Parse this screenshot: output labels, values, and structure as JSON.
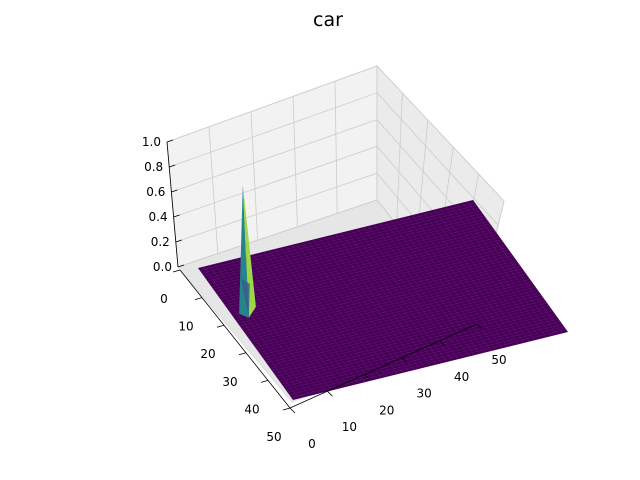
{
  "chart_data": {
    "type": "surface3d",
    "title": "car",
    "xlabel": "",
    "ylabel": "",
    "zlabel": "",
    "xlim": [
      0,
      50
    ],
    "ylim": [
      0,
      50
    ],
    "zlim": [
      0,
      1
    ],
    "x_ticks": [
      "0",
      "10",
      "20",
      "30",
      "40",
      "50"
    ],
    "y_ticks": [
      "0",
      "10",
      "20",
      "30",
      "40",
      "50"
    ],
    "z_ticks": [
      "0.0",
      "0.2",
      "0.4",
      "0.6",
      "0.8",
      "1.0"
    ],
    "grid": true,
    "colormap": "viridis",
    "peak": {
      "x": 3,
      "y": 17,
      "z": 1.0
    },
    "surface_base_value": 0.0,
    "grid_resolution": 50
  },
  "colors": {
    "surface_low": "#440154",
    "surface_mid": "#21918c",
    "surface_high": "#fde725",
    "pane": "#f2f2f2",
    "gridline": "#cccccc"
  }
}
